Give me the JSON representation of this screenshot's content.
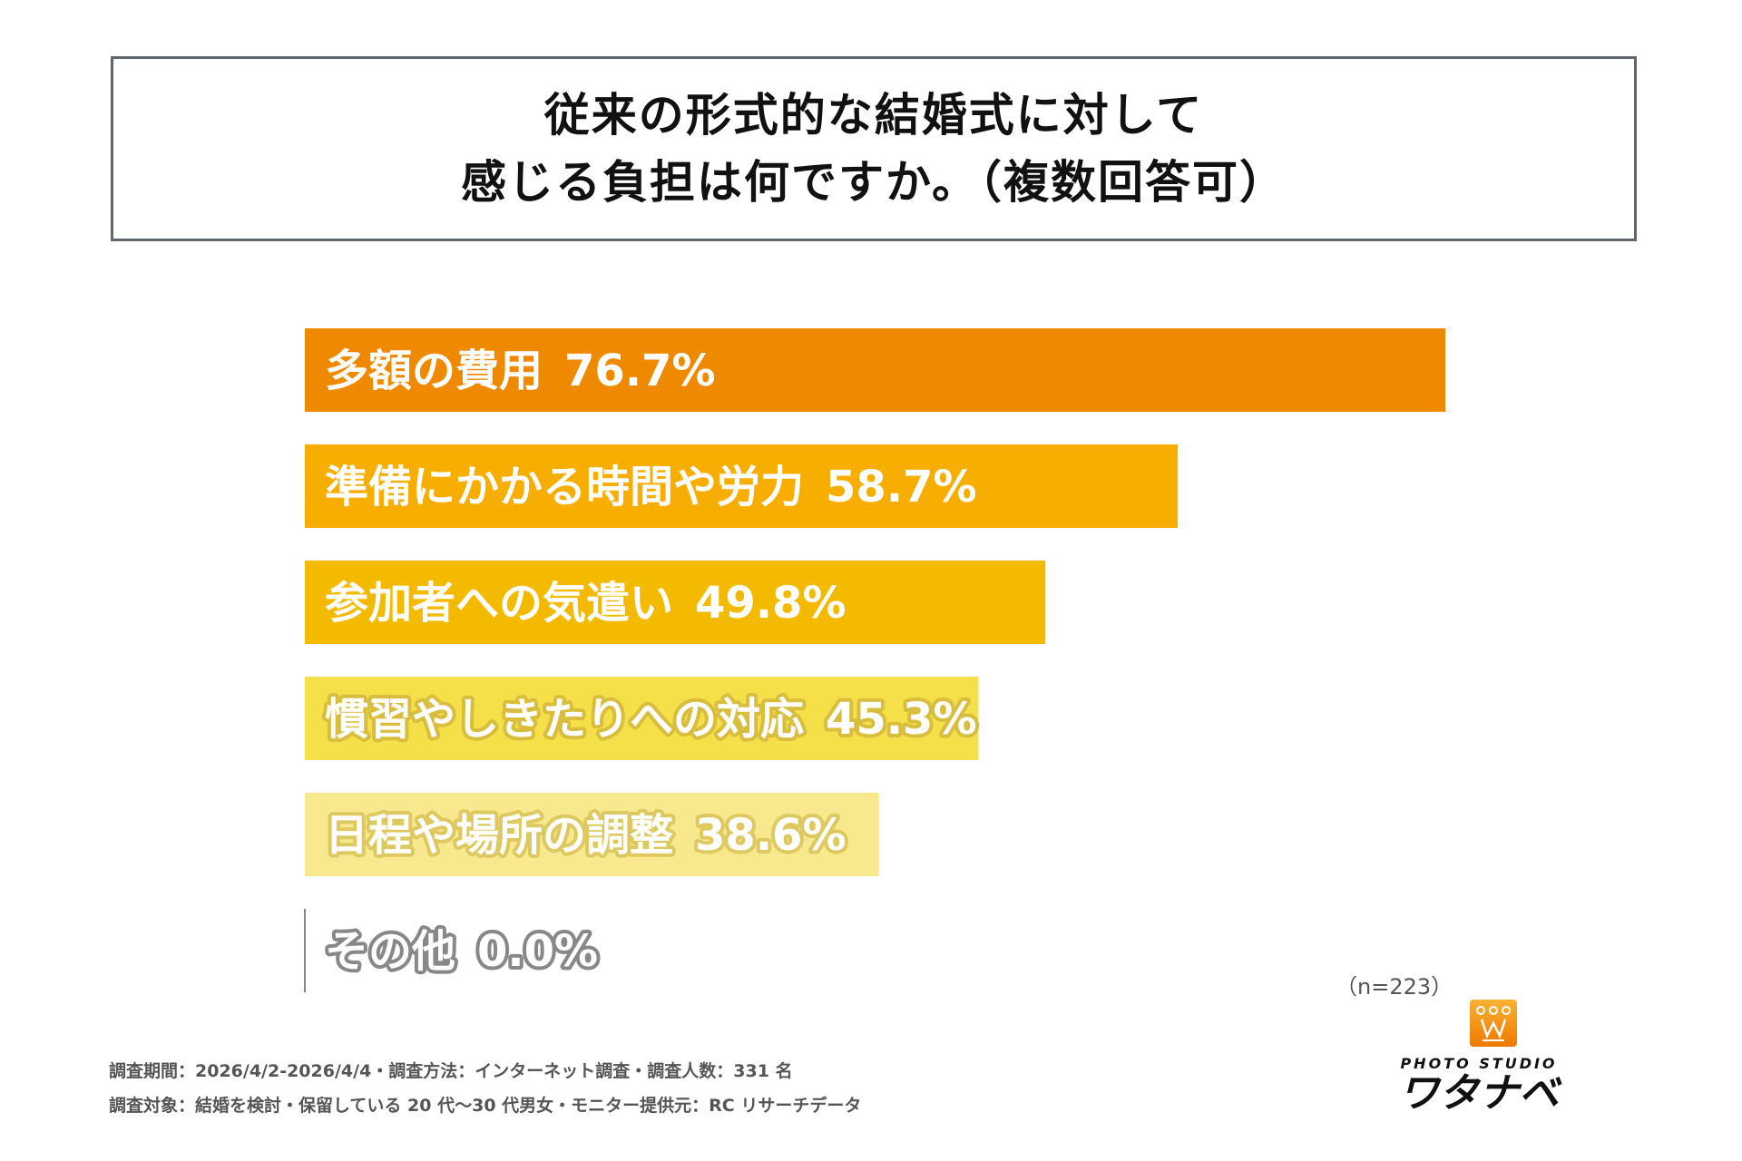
{
  "chart_data": {
    "type": "bar",
    "orientation": "horizontal",
    "title": [
      "従来の形式的な結婚式に対して",
      "感じる負担は何ですか。（複数回答可）"
    ],
    "categories": [
      "多額の費用",
      "準備にかかる時間や労力",
      "参加者への気遣い",
      "慣習やしきたりへの対応",
      "日程や場所の調整",
      "その他"
    ],
    "values": [
      76.7,
      58.7,
      49.8,
      45.3,
      38.6,
      0.0
    ],
    "value_labels": [
      "76.7%",
      "58.7%",
      "49.8%",
      "45.3%",
      "38.6%",
      "0.0%"
    ],
    "colors": [
      "#EF8A00",
      "#F7AE00",
      "#F4BA00",
      "#F5E04A",
      "#F8E98F",
      "#888888"
    ],
    "label_outline_colors": [
      "",
      "",
      "",
      "#D9BE3E",
      "#DDC95F",
      "#888888"
    ],
    "xlim": [
      0,
      100
    ],
    "grid": false,
    "xlabel": "",
    "ylabel": ""
  },
  "sample_size": "（n=223）",
  "footer": {
    "line1": "調査期間：2026/4/2-2026/4/4・調査方法：インターネット調査・調査人数：331 名",
    "line2": "調査対象：結婚を検討・保留している 20 代～30 代男女・モニター提供元：RC リサーチデータ"
  },
  "logo": {
    "text_top": "PHOTO STUDIO",
    "text_main": "ワタナベ",
    "color": "#F39800"
  }
}
